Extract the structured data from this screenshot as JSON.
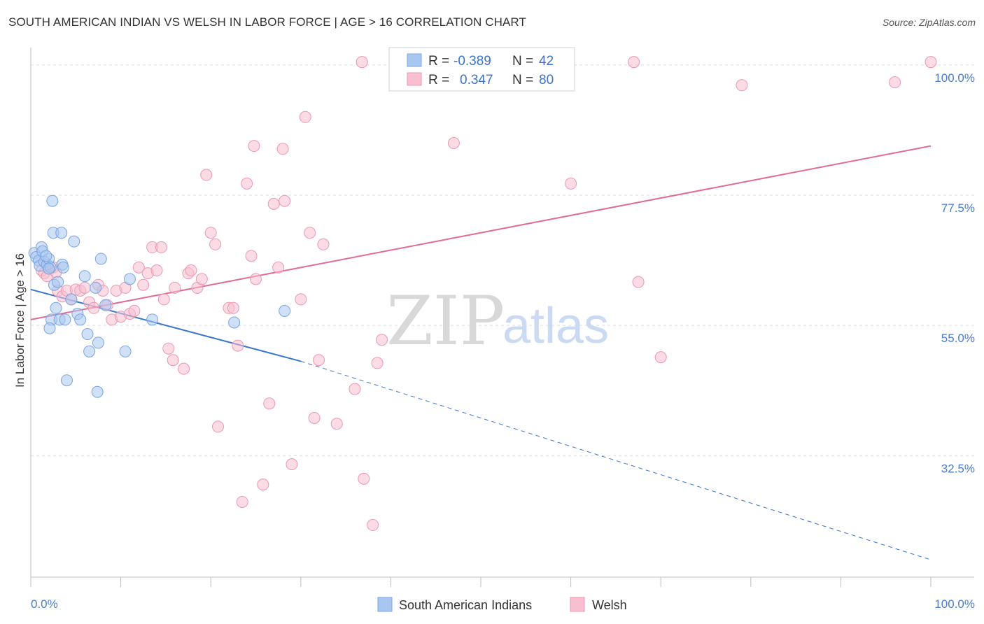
{
  "title": "SOUTH AMERICAN INDIAN VS WELSH IN LABOR FORCE | AGE > 16 CORRELATION CHART",
  "source": "Source: ZipAtlas.com",
  "watermark": {
    "zip": "ZIP",
    "atlas": "atlas"
  },
  "legend": {
    "rows": [
      {
        "r_label": "R =",
        "r_value": "-0.389",
        "n_label": "N =",
        "n_value": "42"
      },
      {
        "r_label": "R =",
        "r_value": "0.347",
        "n_label": "N =",
        "n_value": "80"
      }
    ]
  },
  "colors": {
    "blue_fill": "#a9c6f0",
    "blue_stroke": "#7aa5e0",
    "blue_line": "#3a76cc",
    "pink_fill": "#f7bfd0",
    "pink_stroke": "#ec97b2",
    "pink_line": "#e06b96",
    "grid": "#dcdcdc",
    "axis_label": "#4a7ccf"
  },
  "chart_data": {
    "type": "scatter",
    "title": "SOUTH AMERICAN INDIAN VS WELSH IN LABOR FORCE | AGE > 16 CORRELATION CHART",
    "xlabel": "",
    "ylabel": "In Labor Force | Age > 16",
    "xlim": [
      0,
      100
    ],
    "ylim": [
      11.5,
      103
    ],
    "x_tick_labels": [
      "0.0%",
      "100.0%"
    ],
    "y_ticks": [
      32.5,
      55.0,
      77.5,
      100.0
    ],
    "y_tick_labels": [
      "32.5%",
      "55.0%",
      "77.5%",
      "100.0%"
    ],
    "grid": true,
    "legend_position": "top-center",
    "series": [
      {
        "name": "South American Indians",
        "color": "#a9c6f0",
        "trend": {
          "x0": 0,
          "y0": 61.2,
          "x1": 30,
          "y1": 48.8,
          "dash_to_x": 100,
          "dash_to_y": 14.5
        },
        "points": [
          [
            0.4,
            67.5
          ],
          [
            0.6,
            66.8
          ],
          [
            0.9,
            66.2
          ],
          [
            1.0,
            65.3
          ],
          [
            1.2,
            68.5
          ],
          [
            1.3,
            67.8
          ],
          [
            1.5,
            66.0
          ],
          [
            1.8,
            65.5
          ],
          [
            2.0,
            66.5
          ],
          [
            2.2,
            65.0
          ],
          [
            2.4,
            76.5
          ],
          [
            2.3,
            56.0
          ],
          [
            2.1,
            54.5
          ],
          [
            2.5,
            71.0
          ],
          [
            2.6,
            62.0
          ],
          [
            2.8,
            58.0
          ],
          [
            3.0,
            62.5
          ],
          [
            3.2,
            56.0
          ],
          [
            3.5,
            65.5
          ],
          [
            3.8,
            56.0
          ],
          [
            3.4,
            71.0
          ],
          [
            3.6,
            65.0
          ],
          [
            4.0,
            45.5
          ],
          [
            4.5,
            59.5
          ],
          [
            4.8,
            69.5
          ],
          [
            5.2,
            57.0
          ],
          [
            5.5,
            56.0
          ],
          [
            6.0,
            63.5
          ],
          [
            6.3,
            53.5
          ],
          [
            6.5,
            50.5
          ],
          [
            7.2,
            61.5
          ],
          [
            7.5,
            52.0
          ],
          [
            7.4,
            43.5
          ],
          [
            7.8,
            66.5
          ],
          [
            8.3,
            58.5
          ],
          [
            10.5,
            50.5
          ],
          [
            11.0,
            63.0
          ],
          [
            13.5,
            56.0
          ],
          [
            22.6,
            55.5
          ],
          [
            28.2,
            57.5
          ],
          [
            2.0,
            64.8
          ],
          [
            1.7,
            67.0
          ]
        ]
      },
      {
        "name": "Welsh",
        "color": "#f7bfd0",
        "trend": {
          "x0": 0,
          "y0": 56.0,
          "x1": 100,
          "y1": 86.0
        },
        "points": [
          [
            1.2,
            64.5
          ],
          [
            1.5,
            64.0
          ],
          [
            1.8,
            63.5
          ],
          [
            2.0,
            64.8
          ],
          [
            2.5,
            65.0
          ],
          [
            2.8,
            64.2
          ],
          [
            3.0,
            61.0
          ],
          [
            3.5,
            60.0
          ],
          [
            4.0,
            61.0
          ],
          [
            4.5,
            59.5
          ],
          [
            5.0,
            61.2
          ],
          [
            5.5,
            61.0
          ],
          [
            6.0,
            61.5
          ],
          [
            6.5,
            59.0
          ],
          [
            7.0,
            58.0
          ],
          [
            7.5,
            62.0
          ],
          [
            8.0,
            61.0
          ],
          [
            8.5,
            58.5
          ],
          [
            9.0,
            56.0
          ],
          [
            9.5,
            61.0
          ],
          [
            10.0,
            56.5
          ],
          [
            10.5,
            61.5
          ],
          [
            11.0,
            57.0
          ],
          [
            11.5,
            57.5
          ],
          [
            12.0,
            65.0
          ],
          [
            12.5,
            62.0
          ],
          [
            13.0,
            64.0
          ],
          [
            13.5,
            68.5
          ],
          [
            14.0,
            64.5
          ],
          [
            14.5,
            68.5
          ],
          [
            14.8,
            59.5
          ],
          [
            15.3,
            51.0
          ],
          [
            15.8,
            49.0
          ],
          [
            16.0,
            61.5
          ],
          [
            17.0,
            47.5
          ],
          [
            17.5,
            64.0
          ],
          [
            17.8,
            64.5
          ],
          [
            18.5,
            61.5
          ],
          [
            19.0,
            63.0
          ],
          [
            19.5,
            81.0
          ],
          [
            20.0,
            71.0
          ],
          [
            20.5,
            69.0
          ],
          [
            20.8,
            37.5
          ],
          [
            22.0,
            58.0
          ],
          [
            22.5,
            58.0
          ],
          [
            23.0,
            51.5
          ],
          [
            23.5,
            24.5
          ],
          [
            24.0,
            79.5
          ],
          [
            24.5,
            67.0
          ],
          [
            24.8,
            86.0
          ],
          [
            25.0,
            63.0
          ],
          [
            25.8,
            27.5
          ],
          [
            26.5,
            41.5
          ],
          [
            27.0,
            76.0
          ],
          [
            27.5,
            65.0
          ],
          [
            28.0,
            85.5
          ],
          [
            28.2,
            76.5
          ],
          [
            29.0,
            31.0
          ],
          [
            30.0,
            59.5
          ],
          [
            30.5,
            91.0
          ],
          [
            31.0,
            71.0
          ],
          [
            31.5,
            39.0
          ],
          [
            32.0,
            49.0
          ],
          [
            32.5,
            69.0
          ],
          [
            34.0,
            38.0
          ],
          [
            36.0,
            44.0
          ],
          [
            37.0,
            28.5
          ],
          [
            36.8,
            100.5
          ],
          [
            38.0,
            20.5
          ],
          [
            38.5,
            48.5
          ],
          [
            39.0,
            52.5
          ],
          [
            41.0,
            100.5
          ],
          [
            47.0,
            86.5
          ],
          [
            60.0,
            79.5
          ],
          [
            67.0,
            100.5
          ],
          [
            67.5,
            62.5
          ],
          [
            70.0,
            49.5
          ],
          [
            79.0,
            96.5
          ],
          [
            96.0,
            97.0
          ],
          [
            100.0,
            100.5
          ]
        ]
      }
    ]
  }
}
